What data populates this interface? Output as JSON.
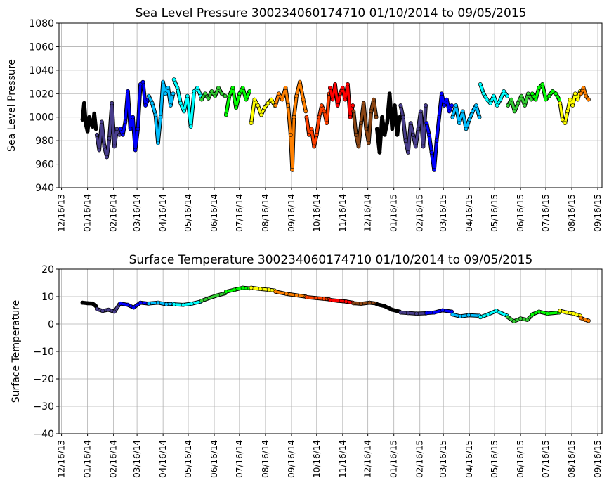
{
  "chart_data": [
    {
      "type": "scatter",
      "title": "Sea Level Pressure 300234060174710  01/10/2014 to 09/05/2015",
      "ylabel": "Sea Level Pressure",
      "xlabel": "",
      "ylim": [
        940,
        1080
      ],
      "yticks": [
        940,
        960,
        980,
        1000,
        1020,
        1040,
        1060,
        1080
      ],
      "xlim": [
        "2013-12-13",
        "2015-09-21"
      ],
      "xticks": [
        "2013-12-16",
        "2014-01-16",
        "2014-02-16",
        "2014-03-16",
        "2014-04-16",
        "2014-05-16",
        "2014-06-16",
        "2014-07-16",
        "2014-08-16",
        "2014-09-16",
        "2014-10-16",
        "2014-11-16",
        "2014-12-16",
        "2015-01-16",
        "2015-02-16",
        "2015-03-16",
        "2015-04-16",
        "2015-05-16",
        "2015-06-16",
        "2015-07-16",
        "2015-08-16",
        "2015-09-16"
      ],
      "xtick_labels": [
        "12/16/13",
        "01/16/14",
        "02/16/14",
        "03/16/14",
        "04/16/14",
        "05/16/14",
        "06/16/14",
        "07/16/14",
        "08/16/14",
        "09/16/14",
        "10/16/14",
        "11/16/14",
        "12/16/14",
        "01/16/15",
        "02/16/15",
        "03/16/15",
        "04/16/15",
        "05/16/15",
        "06/16/15",
        "07/16/15",
        "08/16/15",
        "09/16/15"
      ],
      "grid": true,
      "series": [
        {
          "color": "#000000",
          "x": [
            "2014-01-10",
            "2014-01-12",
            "2014-01-14",
            "2014-01-16",
            "2014-01-18",
            "2014-01-20",
            "2014-01-22",
            "2014-01-24",
            "2014-01-26"
          ],
          "y": [
            998,
            1012,
            994,
            988,
            1000,
            995,
            992,
            1003,
            990
          ]
        },
        {
          "color": "#483d8b",
          "x": [
            "2014-01-27",
            "2014-01-30",
            "2014-02-02",
            "2014-02-05",
            "2014-02-08",
            "2014-02-11",
            "2014-02-14",
            "2014-02-17",
            "2014-02-20",
            "2014-02-23"
          ],
          "y": [
            985,
            972,
            996,
            975,
            966,
            982,
            1012,
            975,
            990,
            985
          ]
        },
        {
          "color": "#0000ff",
          "x": [
            "2014-02-24",
            "2014-02-27",
            "2014-03-02",
            "2014-03-05",
            "2014-03-08",
            "2014-03-11",
            "2014-03-14",
            "2014-03-17",
            "2014-03-20",
            "2014-03-23",
            "2014-03-26",
            "2014-03-29"
          ],
          "y": [
            990,
            985,
            996,
            1022,
            990,
            1000,
            972,
            990,
            1028,
            1030,
            1010,
            1015
          ]
        },
        {
          "color": "#00bfff",
          "x": [
            "2014-03-30",
            "2014-04-03",
            "2014-04-07",
            "2014-04-10",
            "2014-04-13",
            "2014-04-16",
            "2014-04-19",
            "2014-04-22",
            "2014-04-25",
            "2014-04-28"
          ],
          "y": [
            1018,
            1012,
            1002,
            978,
            1000,
            1030,
            1020,
            1025,
            1010,
            1020
          ]
        },
        {
          "color": "#00ffff",
          "x": [
            "2014-04-29",
            "2014-05-03",
            "2014-05-07",
            "2014-05-11",
            "2014-05-15",
            "2014-05-19",
            "2014-05-23",
            "2014-05-27",
            "2014-05-31"
          ],
          "y": [
            1032,
            1025,
            1012,
            1005,
            1018,
            992,
            1022,
            1025,
            1018
          ]
        },
        {
          "color": "#32cd32",
          "x": [
            "2014-06-01",
            "2014-06-05",
            "2014-06-09",
            "2014-06-13",
            "2014-06-17",
            "2014-06-21",
            "2014-06-25",
            "2014-06-29"
          ],
          "y": [
            1015,
            1020,
            1016,
            1022,
            1018,
            1025,
            1020,
            1018
          ]
        },
        {
          "color": "#00ff00",
          "x": [
            "2014-06-30",
            "2014-07-04",
            "2014-07-08",
            "2014-07-12",
            "2014-07-16",
            "2014-07-20",
            "2014-07-24",
            "2014-07-28"
          ],
          "y": [
            1002,
            1018,
            1025,
            1008,
            1020,
            1025,
            1015,
            1022
          ]
        },
        {
          "color": "#ffff00",
          "x": [
            "2014-07-30",
            "2014-08-03",
            "2014-08-07",
            "2014-08-11",
            "2014-08-15",
            "2014-08-19",
            "2014-08-23",
            "2014-08-27"
          ],
          "y": [
            995,
            1015,
            1010,
            1002,
            1008,
            1012,
            1015,
            1010
          ]
        },
        {
          "color": "#ff8000",
          "x": [
            "2014-08-28",
            "2014-09-01",
            "2014-09-05",
            "2014-09-09",
            "2014-09-12",
            "2014-09-15",
            "2014-09-17",
            "2014-09-19",
            "2014-09-22",
            "2014-09-26",
            "2014-09-30",
            "2014-10-03"
          ],
          "y": [
            1010,
            1020,
            1015,
            1025,
            1010,
            985,
            955,
            1000,
            1018,
            1030,
            1015,
            1005
          ]
        },
        {
          "color": "#ff4000",
          "x": [
            "2014-10-04",
            "2014-10-07",
            "2014-10-10",
            "2014-10-13",
            "2014-10-16",
            "2014-10-19",
            "2014-10-22",
            "2014-10-25",
            "2014-10-28",
            "2014-10-31"
          ],
          "y": [
            1000,
            985,
            990,
            975,
            985,
            1000,
            1010,
            1005,
            995,
            1020
          ]
        },
        {
          "color": "#ff0000",
          "x": [
            "2014-11-01",
            "2014-11-04",
            "2014-11-07",
            "2014-11-10",
            "2014-11-13",
            "2014-11-16",
            "2014-11-19",
            "2014-11-22",
            "2014-11-25",
            "2014-11-28"
          ],
          "y": [
            1025,
            1015,
            1028,
            1010,
            1020,
            1025,
            1015,
            1028,
            1000,
            1010
          ]
        },
        {
          "color": "#8b4513",
          "x": [
            "2014-11-29",
            "2014-12-02",
            "2014-12-05",
            "2014-12-08",
            "2014-12-11",
            "2014-12-14",
            "2014-12-17",
            "2014-12-20",
            "2014-12-23",
            "2014-12-26"
          ],
          "y": [
            1005,
            985,
            975,
            995,
            1012,
            990,
            978,
            1005,
            1015,
            1000
          ]
        },
        {
          "color": "#000000",
          "x": [
            "2014-12-27",
            "2014-12-30",
            "2015-01-02",
            "2015-01-05",
            "2015-01-08",
            "2015-01-11",
            "2015-01-14",
            "2015-01-17",
            "2015-01-20",
            "2015-01-23"
          ],
          "y": [
            990,
            970,
            1000,
            985,
            995,
            1020,
            990,
            1010,
            985,
            1000
          ]
        },
        {
          "color": "#483d8b",
          "x": [
            "2015-01-24",
            "2015-01-27",
            "2015-01-30",
            "2015-02-02",
            "2015-02-05",
            "2015-02-08",
            "2015-02-11",
            "2015-02-14",
            "2015-02-17",
            "2015-02-20",
            "2015-02-23"
          ],
          "y": [
            1010,
            1000,
            980,
            970,
            995,
            985,
            975,
            990,
            1005,
            975,
            1010
          ]
        },
        {
          "color": "#0000ff",
          "x": [
            "2015-02-24",
            "2015-02-27",
            "2015-03-02",
            "2015-03-05",
            "2015-03-08",
            "2015-03-11",
            "2015-03-14",
            "2015-03-17",
            "2015-03-20",
            "2015-03-23",
            "2015-03-26"
          ],
          "y": [
            995,
            985,
            970,
            955,
            980,
            1000,
            1020,
            1010,
            1015,
            1005,
            1010
          ]
        },
        {
          "color": "#00bfff",
          "x": [
            "2015-03-27",
            "2015-03-31",
            "2015-04-04",
            "2015-04-08",
            "2015-04-12",
            "2015-04-16",
            "2015-04-20",
            "2015-04-24",
            "2015-04-28"
          ],
          "y": [
            1000,
            1010,
            995,
            1005,
            990,
            998,
            1005,
            1010,
            1000
          ]
        },
        {
          "color": "#00ffff",
          "x": [
            "2015-04-29",
            "2015-05-03",
            "2015-05-07",
            "2015-05-11",
            "2015-05-15",
            "2015-05-19",
            "2015-05-23",
            "2015-05-27",
            "2015-05-31"
          ],
          "y": [
            1028,
            1020,
            1015,
            1012,
            1018,
            1010,
            1015,
            1022,
            1018
          ]
        },
        {
          "color": "#32cd32",
          "x": [
            "2015-06-01",
            "2015-06-05",
            "2015-06-09",
            "2015-06-13",
            "2015-06-17",
            "2015-06-21",
            "2015-06-25",
            "2015-06-29"
          ],
          "y": [
            1010,
            1015,
            1005,
            1012,
            1018,
            1010,
            1020,
            1015
          ]
        },
        {
          "color": "#00ff00",
          "x": [
            "2015-06-30",
            "2015-07-04",
            "2015-07-08",
            "2015-07-12",
            "2015-07-16",
            "2015-07-20",
            "2015-07-24",
            "2015-07-28",
            "2015-08-01"
          ],
          "y": [
            1020,
            1015,
            1025,
            1028,
            1015,
            1018,
            1022,
            1020,
            1015
          ]
        },
        {
          "color": "#ffff00",
          "x": [
            "2015-08-02",
            "2015-08-05",
            "2015-08-08",
            "2015-08-11",
            "2015-08-14",
            "2015-08-17",
            "2015-08-20",
            "2015-08-23",
            "2015-08-26"
          ],
          "y": [
            1012,
            998,
            995,
            1005,
            1015,
            1010,
            1020,
            1015,
            1022
          ]
        },
        {
          "color": "#ff8000",
          "x": [
            "2015-08-27",
            "2015-08-30",
            "2015-09-02",
            "2015-09-05"
          ],
          "y": [
            1020,
            1025,
            1018,
            1015
          ]
        }
      ]
    },
    {
      "type": "scatter",
      "title": "Surface Temperature 300234060174710  01/10/2014 to 09/05/2015",
      "ylabel": "Surface Temperature",
      "xlabel": "",
      "ylim": [
        -40,
        20
      ],
      "yticks": [
        -40,
        -30,
        -20,
        -10,
        0,
        10,
        20
      ],
      "xlim": [
        "2013-12-13",
        "2015-09-21"
      ],
      "xticks": [
        "2013-12-16",
        "2014-01-16",
        "2014-02-16",
        "2014-03-16",
        "2014-04-16",
        "2014-05-16",
        "2014-06-16",
        "2014-07-16",
        "2014-08-16",
        "2014-09-16",
        "2014-10-16",
        "2014-11-16",
        "2014-12-16",
        "2015-01-16",
        "2015-02-16",
        "2015-03-16",
        "2015-04-16",
        "2015-05-16",
        "2015-06-16",
        "2015-07-16",
        "2015-08-16",
        "2015-09-16"
      ],
      "xtick_labels": [
        "12/16/13",
        "01/16/14",
        "02/16/14",
        "03/16/14",
        "04/16/14",
        "05/16/14",
        "06/16/14",
        "07/16/14",
        "08/16/14",
        "09/16/14",
        "10/16/14",
        "11/16/14",
        "12/16/14",
        "01/16/15",
        "02/16/15",
        "03/16/15",
        "04/16/15",
        "05/16/15",
        "06/16/15",
        "07/16/15",
        "08/16/15",
        "09/16/15"
      ],
      "grid": true,
      "series": [
        {
          "color": "#000000",
          "x": [
            "2014-01-10",
            "2014-01-16",
            "2014-01-22",
            "2014-01-26"
          ],
          "y": [
            7.8,
            7.6,
            7.5,
            6.5
          ]
        },
        {
          "color": "#483d8b",
          "x": [
            "2014-01-27",
            "2014-02-03",
            "2014-02-10",
            "2014-02-17",
            "2014-02-23"
          ],
          "y": [
            5.5,
            4.8,
            5.2,
            4.5,
            7.2
          ]
        },
        {
          "color": "#0000ff",
          "x": [
            "2014-02-24",
            "2014-03-05",
            "2014-03-12",
            "2014-03-20",
            "2014-03-29"
          ],
          "y": [
            7.5,
            7.0,
            6.0,
            7.8,
            7.5
          ]
        },
        {
          "color": "#00bfff",
          "x": [
            "2014-03-30",
            "2014-04-10",
            "2014-04-20",
            "2014-04-28"
          ],
          "y": [
            7.5,
            7.8,
            7.2,
            7.4
          ]
        },
        {
          "color": "#00ffff",
          "x": [
            "2014-04-29",
            "2014-05-10",
            "2014-05-20",
            "2014-05-31"
          ],
          "y": [
            7.2,
            7.0,
            7.4,
            8.2
          ]
        },
        {
          "color": "#32cd32",
          "x": [
            "2014-06-01",
            "2014-06-10",
            "2014-06-20",
            "2014-06-29"
          ],
          "y": [
            8.5,
            9.5,
            10.5,
            11.2
          ]
        },
        {
          "color": "#00ff00",
          "x": [
            "2014-06-30",
            "2014-07-10",
            "2014-07-20",
            "2014-07-28"
          ],
          "y": [
            11.8,
            12.5,
            13.2,
            13.0
          ]
        },
        {
          "color": "#ffff00",
          "x": [
            "2014-07-30",
            "2014-08-10",
            "2014-08-20",
            "2014-08-27"
          ],
          "y": [
            13.2,
            12.8,
            12.5,
            12.2
          ]
        },
        {
          "color": "#ff8000",
          "x": [
            "2014-08-28",
            "2014-09-10",
            "2014-09-22",
            "2014-10-03"
          ],
          "y": [
            11.8,
            11.0,
            10.5,
            10.0
          ]
        },
        {
          "color": "#ff4000",
          "x": [
            "2014-10-04",
            "2014-10-15",
            "2014-10-25",
            "2014-10-31"
          ],
          "y": [
            9.8,
            9.5,
            9.2,
            9.0
          ]
        },
        {
          "color": "#ff0000",
          "x": [
            "2014-11-01",
            "2014-11-10",
            "2014-11-20",
            "2014-11-28"
          ],
          "y": [
            8.8,
            8.5,
            8.2,
            7.8
          ]
        },
        {
          "color": "#8b4513",
          "x": [
            "2014-11-29",
            "2014-12-08",
            "2014-12-18",
            "2014-12-26"
          ],
          "y": [
            7.6,
            7.4,
            7.8,
            7.5
          ]
        },
        {
          "color": "#000000",
          "x": [
            "2014-12-27",
            "2015-01-05",
            "2015-01-14",
            "2015-01-23"
          ],
          "y": [
            7.2,
            6.5,
            5.2,
            4.5
          ]
        },
        {
          "color": "#483d8b",
          "x": [
            "2015-01-24",
            "2015-02-02",
            "2015-02-12",
            "2015-02-23"
          ],
          "y": [
            4.2,
            4.0,
            3.8,
            3.9
          ]
        },
        {
          "color": "#0000ff",
          "x": [
            "2015-02-24",
            "2015-03-05",
            "2015-03-15",
            "2015-03-26"
          ],
          "y": [
            4.0,
            4.2,
            5.0,
            4.5
          ]
        },
        {
          "color": "#00bfff",
          "x": [
            "2015-03-27",
            "2015-04-05",
            "2015-04-15",
            "2015-04-28"
          ],
          "y": [
            3.5,
            2.8,
            3.2,
            3.0
          ]
        },
        {
          "color": "#00ffff",
          "x": [
            "2015-04-29",
            "2015-05-08",
            "2015-05-18",
            "2015-05-31"
          ],
          "y": [
            2.5,
            3.5,
            4.8,
            3.0
          ]
        },
        {
          "color": "#32cd32",
          "x": [
            "2015-06-01",
            "2015-06-08",
            "2015-06-16",
            "2015-06-24",
            "2015-06-29"
          ],
          "y": [
            2.5,
            1.0,
            2.0,
            1.5,
            3.0
          ]
        },
        {
          "color": "#00ff00",
          "x": [
            "2015-06-30",
            "2015-07-08",
            "2015-07-18",
            "2015-08-01"
          ],
          "y": [
            3.5,
            4.5,
            3.8,
            4.2
          ]
        },
        {
          "color": "#ffff00",
          "x": [
            "2015-08-02",
            "2015-08-10",
            "2015-08-18",
            "2015-08-26"
          ],
          "y": [
            4.8,
            4.2,
            3.8,
            3.0
          ]
        },
        {
          "color": "#ff8000",
          "x": [
            "2015-08-27",
            "2015-09-01",
            "2015-09-05"
          ],
          "y": [
            2.2,
            1.5,
            1.2
          ]
        }
      ]
    }
  ]
}
